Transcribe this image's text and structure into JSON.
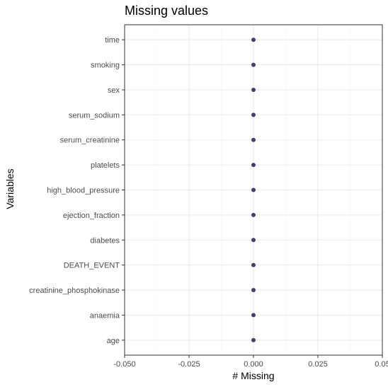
{
  "chart_data": {
    "type": "scatter",
    "title": "Missing values",
    "xlabel": "# Missing",
    "ylabel": "Variables",
    "xlim": [
      -0.05,
      0.05
    ],
    "x_ticks": [
      -0.05,
      -0.025,
      0.0,
      0.025,
      0.05
    ],
    "x_tick_labels": [
      "-0.050",
      "-0.025",
      "0.000",
      "0.025",
      "0.05"
    ],
    "categories": [
      "time",
      "smoking",
      "sex",
      "serum_sodium",
      "serum_creatinine",
      "platelets",
      "high_blood_pressure",
      "ejection_fraction",
      "diabetes",
      "DEATH_EVENT",
      "creatinine_phosphokinase",
      "anaemia",
      "age"
    ],
    "values": [
      0,
      0,
      0,
      0,
      0,
      0,
      0,
      0,
      0,
      0,
      0,
      0,
      0
    ],
    "grid": true,
    "colors": {
      "point": "#433e6e",
      "grid_major": "#ebebeb",
      "grid_minor": "#f5f5f5",
      "panel_border": "#333333",
      "tick_text": "#4d4d4d"
    }
  }
}
